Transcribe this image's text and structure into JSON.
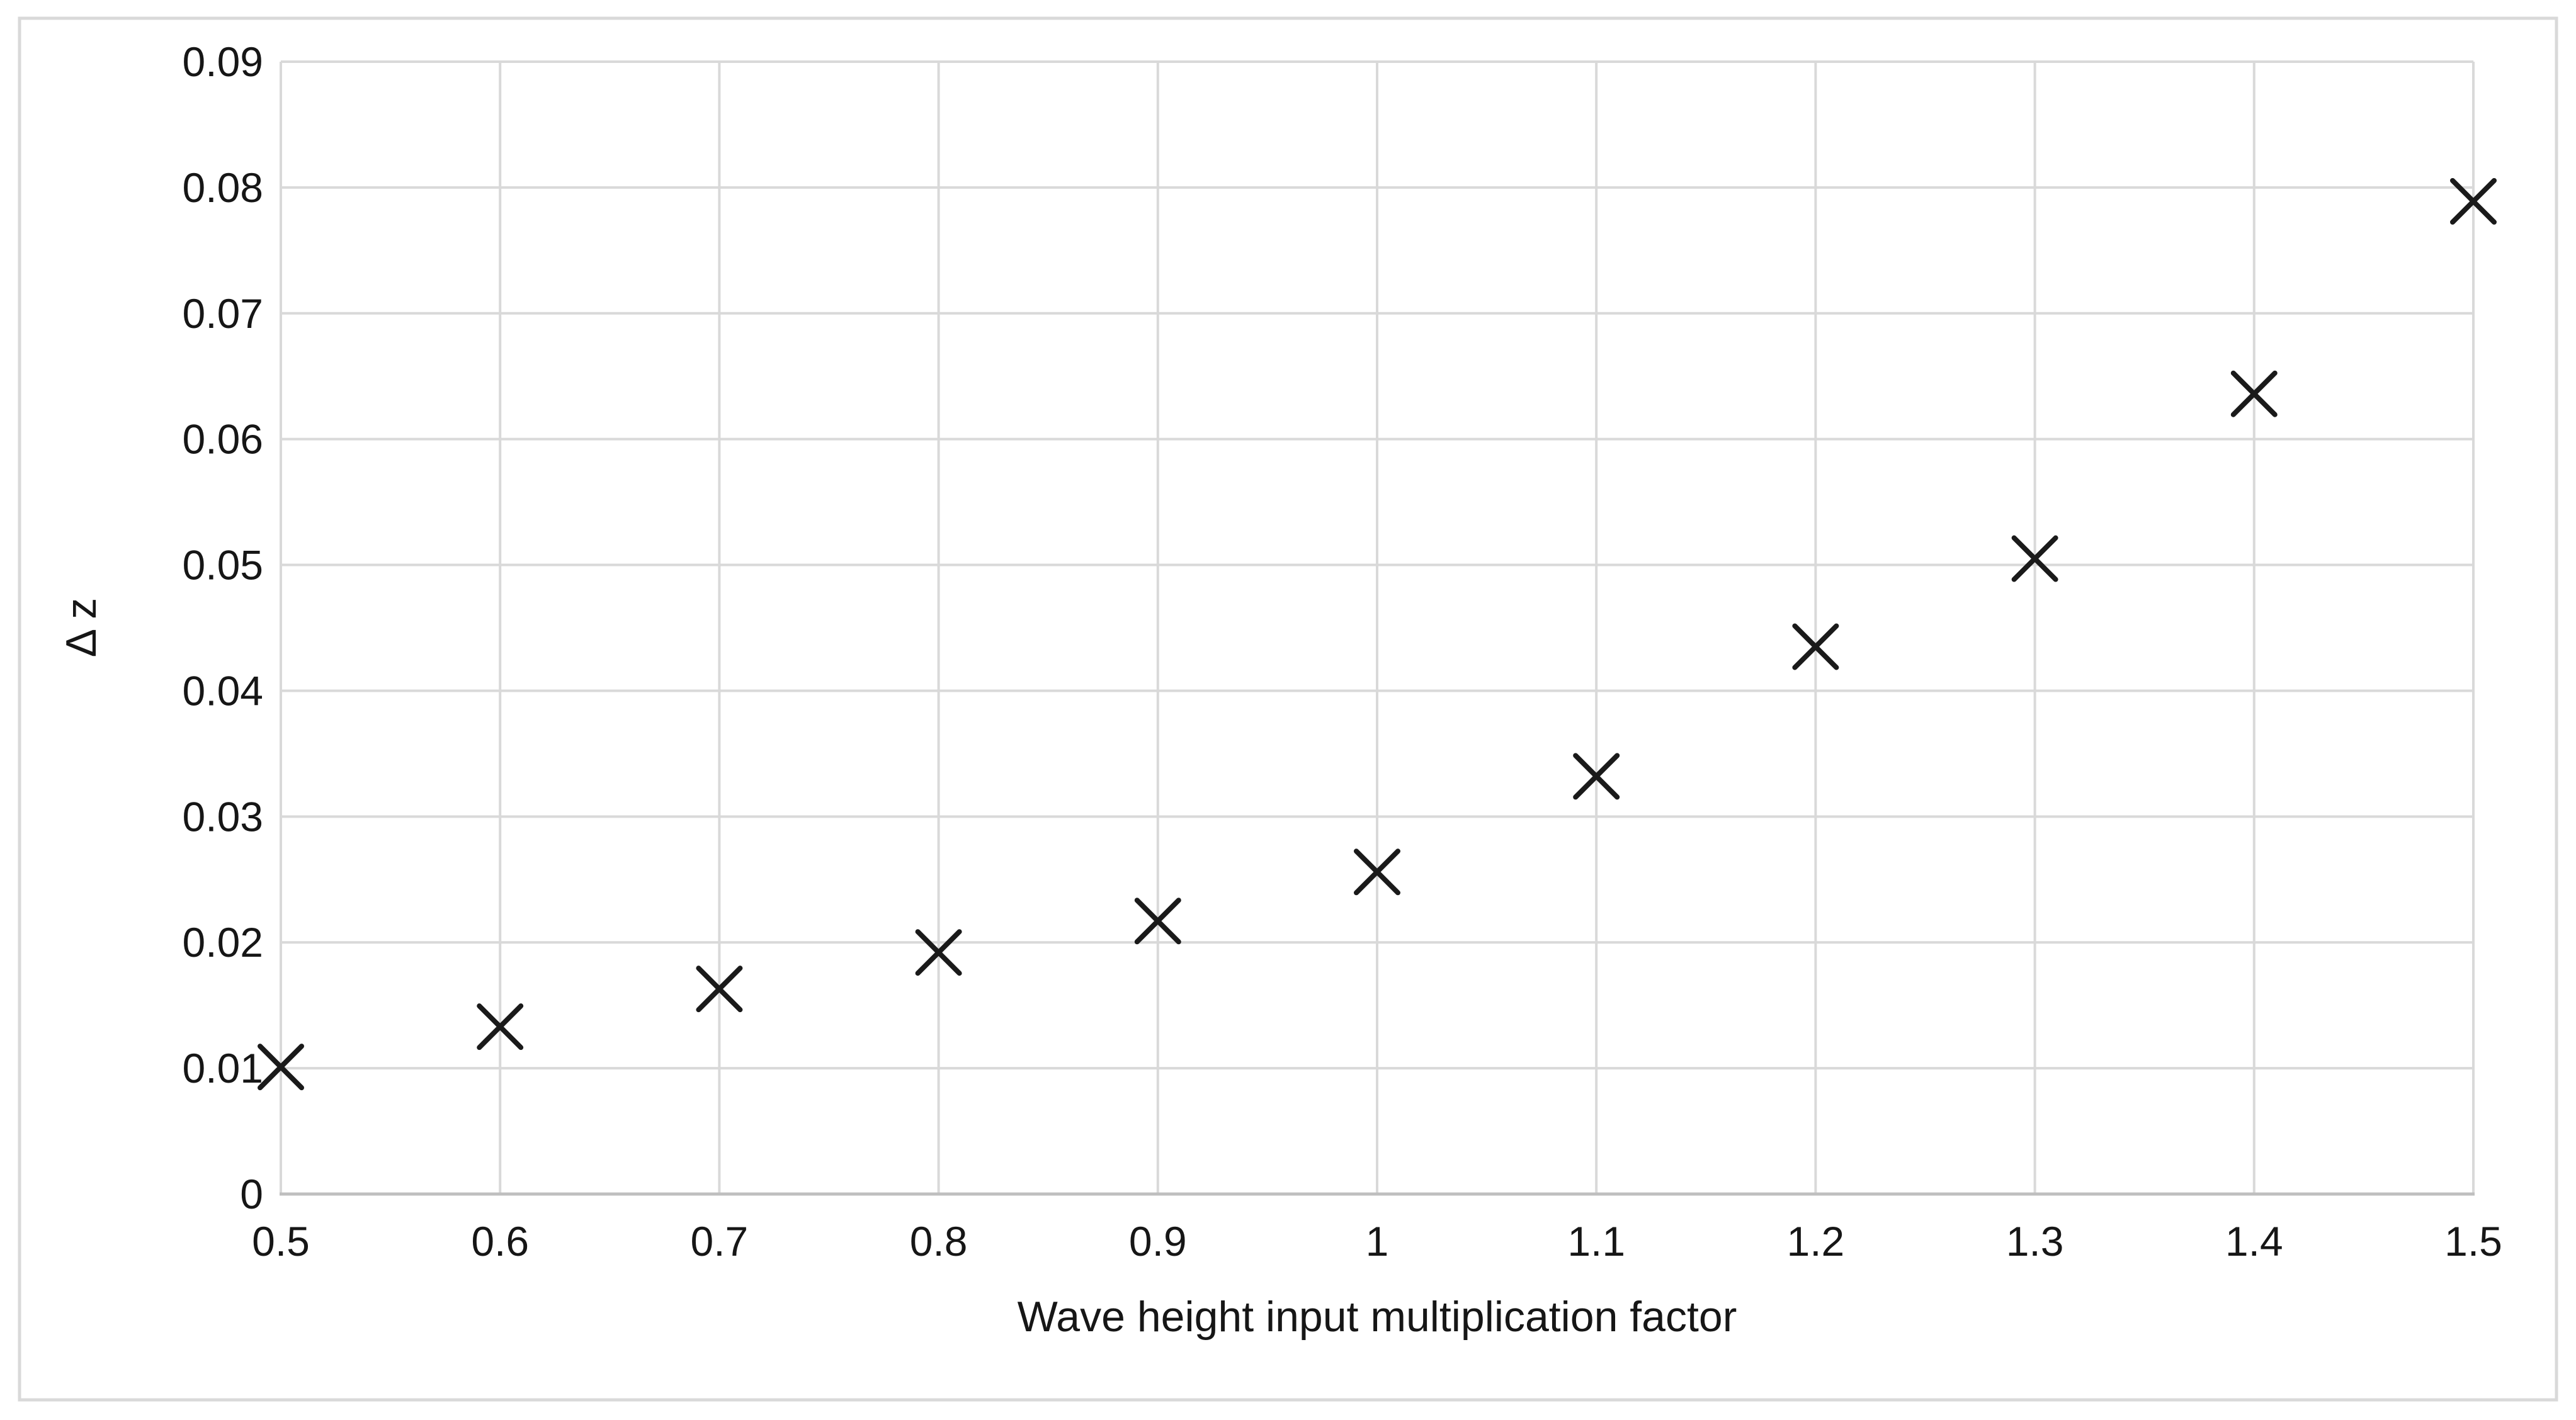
{
  "chart_data": {
    "type": "scatter",
    "title": "",
    "xlabel": "Wave height input multiplication factor",
    "ylabel": "Δ z",
    "x": [
      0.5,
      0.6,
      0.7,
      0.8,
      0.9,
      1.0,
      1.1,
      1.2,
      1.3,
      1.4,
      1.5
    ],
    "y": [
      0.0101,
      0.0133,
      0.0163,
      0.0192,
      0.0217,
      0.0256,
      0.0332,
      0.0435,
      0.0505,
      0.0636,
      0.0789
    ],
    "xlim": [
      0.5,
      1.5
    ],
    "ylim": [
      0,
      0.09
    ],
    "x_tick_values": [
      0.5,
      0.6,
      0.7,
      0.8,
      0.9,
      1.0,
      1.1,
      1.2,
      1.3,
      1.4,
      1.5
    ],
    "x_tick_labels": [
      "0.5",
      "0.6",
      "0.7",
      "0.8",
      "0.9",
      "1",
      "1.1",
      "1.2",
      "1.3",
      "1.4",
      "1.5"
    ],
    "y_tick_values": [
      0,
      0.01,
      0.02,
      0.03,
      0.04,
      0.05,
      0.06,
      0.07,
      0.08,
      0.09
    ],
    "y_tick_labels": [
      "0",
      "0.01",
      "0.02",
      "0.03",
      "0.04",
      "0.05",
      "0.06",
      "0.07",
      "0.08",
      "0.09"
    ],
    "grid": true,
    "legend": "none",
    "marker": {
      "shape": "x",
      "size": 66,
      "stroke_width": 8
    },
    "colors": {
      "marker": "#1a1a1a",
      "gridline": "#d9d9d9",
      "axis_line": "#bfbfbf",
      "frame_border": "#d9d9d9",
      "text": "#161616",
      "background": "#ffffff"
    }
  }
}
